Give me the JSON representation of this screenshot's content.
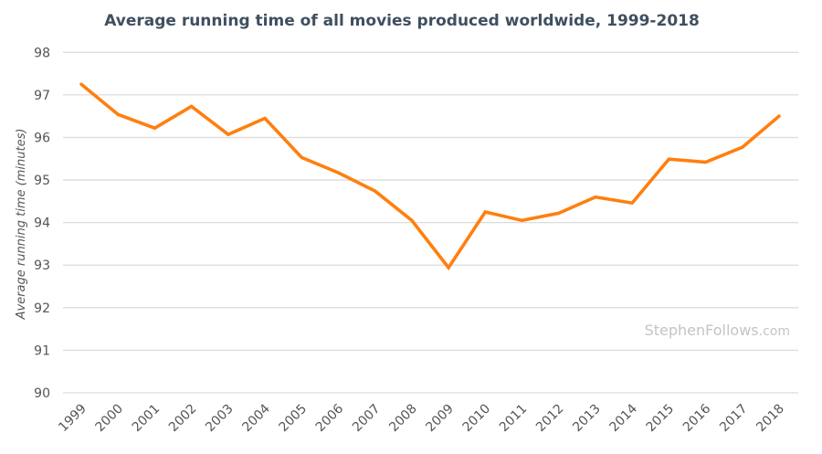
{
  "chart_data": {
    "type": "line",
    "title": "Average running time of all movies produced worldwide, 1999-2018",
    "xlabel": "",
    "ylabel": "Average running time (minutes)",
    "categories": [
      "1999",
      "2000",
      "2001",
      "2002",
      "2003",
      "2004",
      "2005",
      "2006",
      "2007",
      "2008",
      "2009",
      "2010",
      "2011",
      "2012",
      "2013",
      "2014",
      "2015",
      "2016",
      "2017",
      "2018"
    ],
    "values": [
      97.25,
      96.54,
      96.22,
      96.73,
      96.07,
      96.45,
      95.53,
      95.17,
      94.74,
      94.05,
      92.94,
      94.25,
      94.05,
      94.22,
      94.6,
      94.46,
      95.49,
      95.42,
      95.77,
      96.5
    ],
    "ylim": [
      90,
      98
    ],
    "yticks": [
      "90",
      "91",
      "92",
      "93",
      "94",
      "95",
      "96",
      "97",
      "98"
    ],
    "grid": true,
    "line_color": "#ff7f0e",
    "watermark": {
      "main": "StephenFollows",
      "suffix": ".com"
    }
  }
}
